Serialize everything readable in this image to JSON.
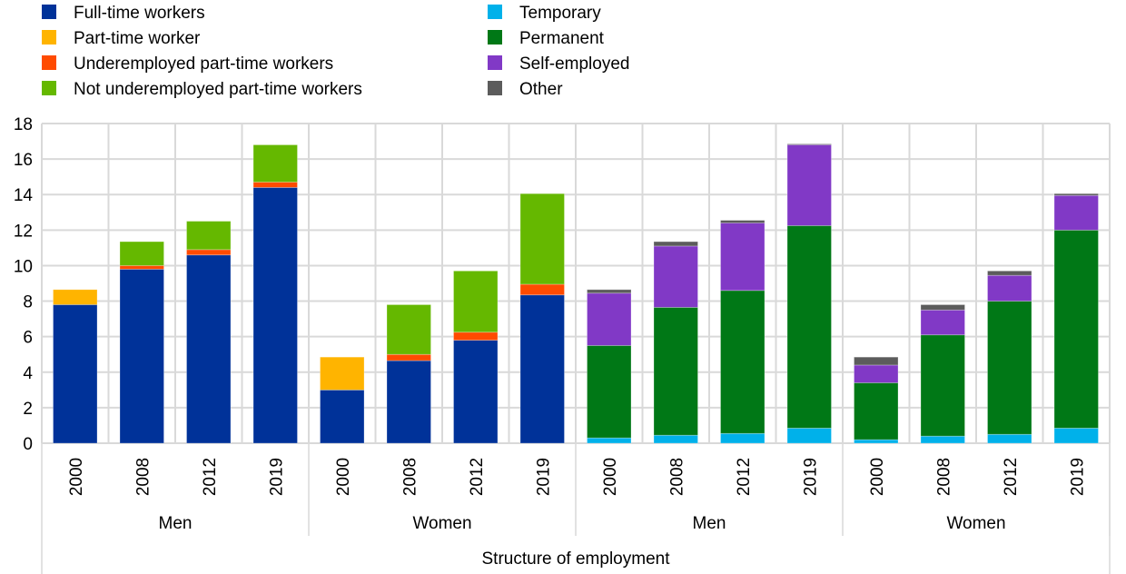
{
  "chart_data": {
    "type": "bar",
    "stacked": true,
    "title": "",
    "xlabel": "Structure of employment",
    "ylabel": "",
    "ylim": [
      0,
      18
    ],
    "yticks": [
      0,
      2,
      4,
      6,
      8,
      10,
      12,
      14,
      16,
      18
    ],
    "grid": true,
    "legend_position": "top",
    "legend": [
      {
        "key": "fulltime",
        "label": "Full-time workers",
        "color": "#003299"
      },
      {
        "key": "parttime",
        "label": "Part-time worker",
        "color": "#FFB400"
      },
      {
        "key": "underemployed",
        "label": "Underemployed part-time workers",
        "color": "#FF4B00"
      },
      {
        "key": "notunderemployed",
        "label": "Not underemployed part-time workers",
        "color": "#65B800"
      },
      {
        "key": "temporary",
        "label": "Temporary",
        "color": "#00B1EA"
      },
      {
        "key": "permanent",
        "label": "Permanent",
        "color": "#007816"
      },
      {
        "key": "selfemployed",
        "label": "Self-employed",
        "color": "#8139C6"
      },
      {
        "key": "other",
        "label": "Other",
        "color": "#5C5C5C"
      }
    ],
    "groups": [
      {
        "label": "Men",
        "categories": [
          "2000",
          "2008",
          "2012",
          "2019"
        ]
      },
      {
        "label": "Women",
        "categories": [
          "2000",
          "2008",
          "2012",
          "2019"
        ]
      },
      {
        "label": "Men",
        "categories": [
          "2000",
          "2008",
          "2012",
          "2019"
        ]
      },
      {
        "label": "Women",
        "categories": [
          "2000",
          "2008",
          "2012",
          "2019"
        ]
      }
    ],
    "series": [
      {
        "name": "Full-time workers",
        "key": "fulltime",
        "values": [
          7.8,
          9.8,
          10.6,
          14.4,
          3.0,
          4.65,
          5.8,
          8.35,
          0,
          0,
          0,
          0,
          0,
          0,
          0,
          0
        ]
      },
      {
        "name": "Part-time worker",
        "key": "parttime",
        "values": [
          0.85,
          0,
          0,
          0,
          1.85,
          0,
          0,
          0,
          0,
          0,
          0,
          0,
          0,
          0,
          0,
          0
        ]
      },
      {
        "name": "Underemployed part-time workers",
        "key": "underemployed",
        "values": [
          0,
          0.2,
          0.3,
          0.3,
          0,
          0.35,
          0.45,
          0.6,
          0,
          0,
          0,
          0,
          0,
          0,
          0,
          0
        ]
      },
      {
        "name": "Not underemployed part-time workers",
        "key": "notunderemployed",
        "values": [
          0,
          1.35,
          1.6,
          2.1,
          0,
          2.8,
          3.45,
          5.1,
          0,
          0,
          0,
          0,
          0,
          0,
          0,
          0
        ]
      },
      {
        "name": "Temporary",
        "key": "temporary",
        "values": [
          0,
          0,
          0,
          0,
          0,
          0,
          0,
          0,
          0.3,
          0.45,
          0.55,
          0.85,
          0.2,
          0.4,
          0.5,
          0.85
        ]
      },
      {
        "name": "Permanent",
        "key": "permanent",
        "values": [
          0,
          0,
          0,
          0,
          0,
          0,
          0,
          0,
          5.2,
          7.2,
          8.05,
          11.4,
          3.2,
          5.7,
          7.5,
          11.15
        ]
      },
      {
        "name": "Self-employed",
        "key": "selfemployed",
        "values": [
          0,
          0,
          0,
          0,
          0,
          0,
          0,
          0,
          2.95,
          3.45,
          3.8,
          4.55,
          1.0,
          1.4,
          1.45,
          1.95
        ]
      },
      {
        "name": "Other",
        "key": "other",
        "values": [
          0,
          0,
          0,
          0,
          0,
          0,
          0,
          0,
          0.2,
          0.25,
          0.15,
          0.05,
          0.45,
          0.3,
          0.25,
          0.1
        ]
      }
    ]
  }
}
